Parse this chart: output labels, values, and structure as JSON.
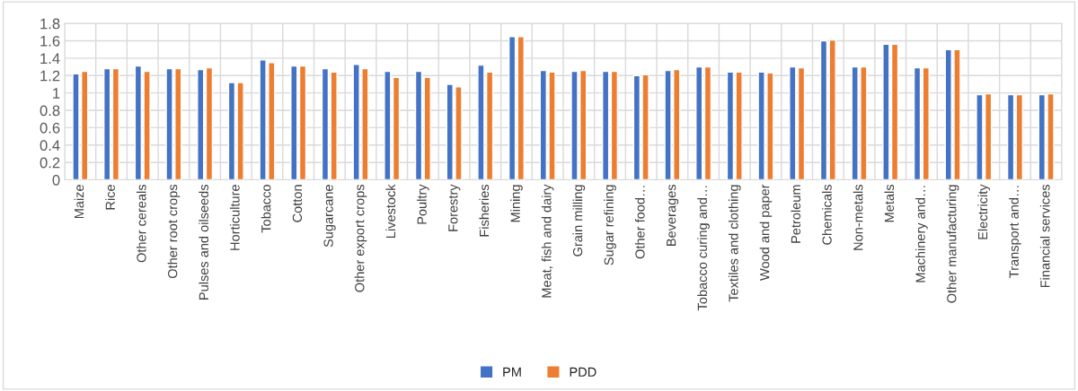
{
  "chart_data": {
    "type": "bar",
    "categories": [
      "Maize",
      "Rice",
      "Other cereals",
      "Other root crops",
      "Pulses and oilseeds",
      "Horticulture",
      "Tobacco",
      "Cotton",
      "Sugarcane",
      "Other export crops",
      "Livestock",
      "Poultry",
      "Forestry",
      "Fisheries",
      "Mining",
      "Meat, fish and dairy",
      "Grain milling",
      "Sugar refining",
      "Other food…",
      "Beverages",
      "Tobacco curing and…",
      "Textiles and clothing",
      "Wood and paper",
      "Petroleum",
      "Chemicals",
      "Non-metals",
      "Metals",
      "Machinery and…",
      "Other manufacturing",
      "Electricity",
      "Transport and…",
      "Financial services"
    ],
    "series": [
      {
        "name": "PM",
        "color": "#4472c4",
        "values": [
          1.22,
          1.28,
          1.31,
          1.28,
          1.27,
          1.12,
          1.38,
          1.31,
          1.28,
          1.33,
          1.25,
          1.25,
          1.1,
          1.32,
          1.65,
          1.26,
          1.25,
          1.25,
          1.2,
          1.26,
          1.3,
          1.24,
          1.24,
          1.3,
          1.6,
          1.3,
          1.56,
          1.29,
          1.5,
          0.98,
          0.98,
          0.98
        ]
      },
      {
        "name": "PDD",
        "color": "#ed7d31",
        "values": [
          1.25,
          1.28,
          1.25,
          1.28,
          1.29,
          1.12,
          1.35,
          1.31,
          1.24,
          1.28,
          1.18,
          1.18,
          1.07,
          1.24,
          1.65,
          1.24,
          1.26,
          1.25,
          1.21,
          1.27,
          1.3,
          1.24,
          1.23,
          1.29,
          1.61,
          1.3,
          1.56,
          1.29,
          1.5,
          0.99,
          0.98,
          0.99
        ]
      }
    ],
    "ylim": [
      0,
      1.8
    ],
    "yticks": [
      0,
      {
        "value": 0.2,
        "label": "0.2"
      },
      {
        "value": 0.4,
        "label": "0.4"
      },
      {
        "value": 0.6,
        "label": "0.6"
      },
      {
        "value": 0.8,
        "label": "0.8"
      },
      1,
      {
        "value": 1.2,
        "label": "1.2"
      },
      {
        "value": 1.4,
        "label": "1.4"
      },
      {
        "value": 1.6,
        "label": "1.6"
      },
      {
        "value": 1.8,
        "label": "1.8"
      }
    ],
    "grid": true,
    "legend": "bottom"
  }
}
